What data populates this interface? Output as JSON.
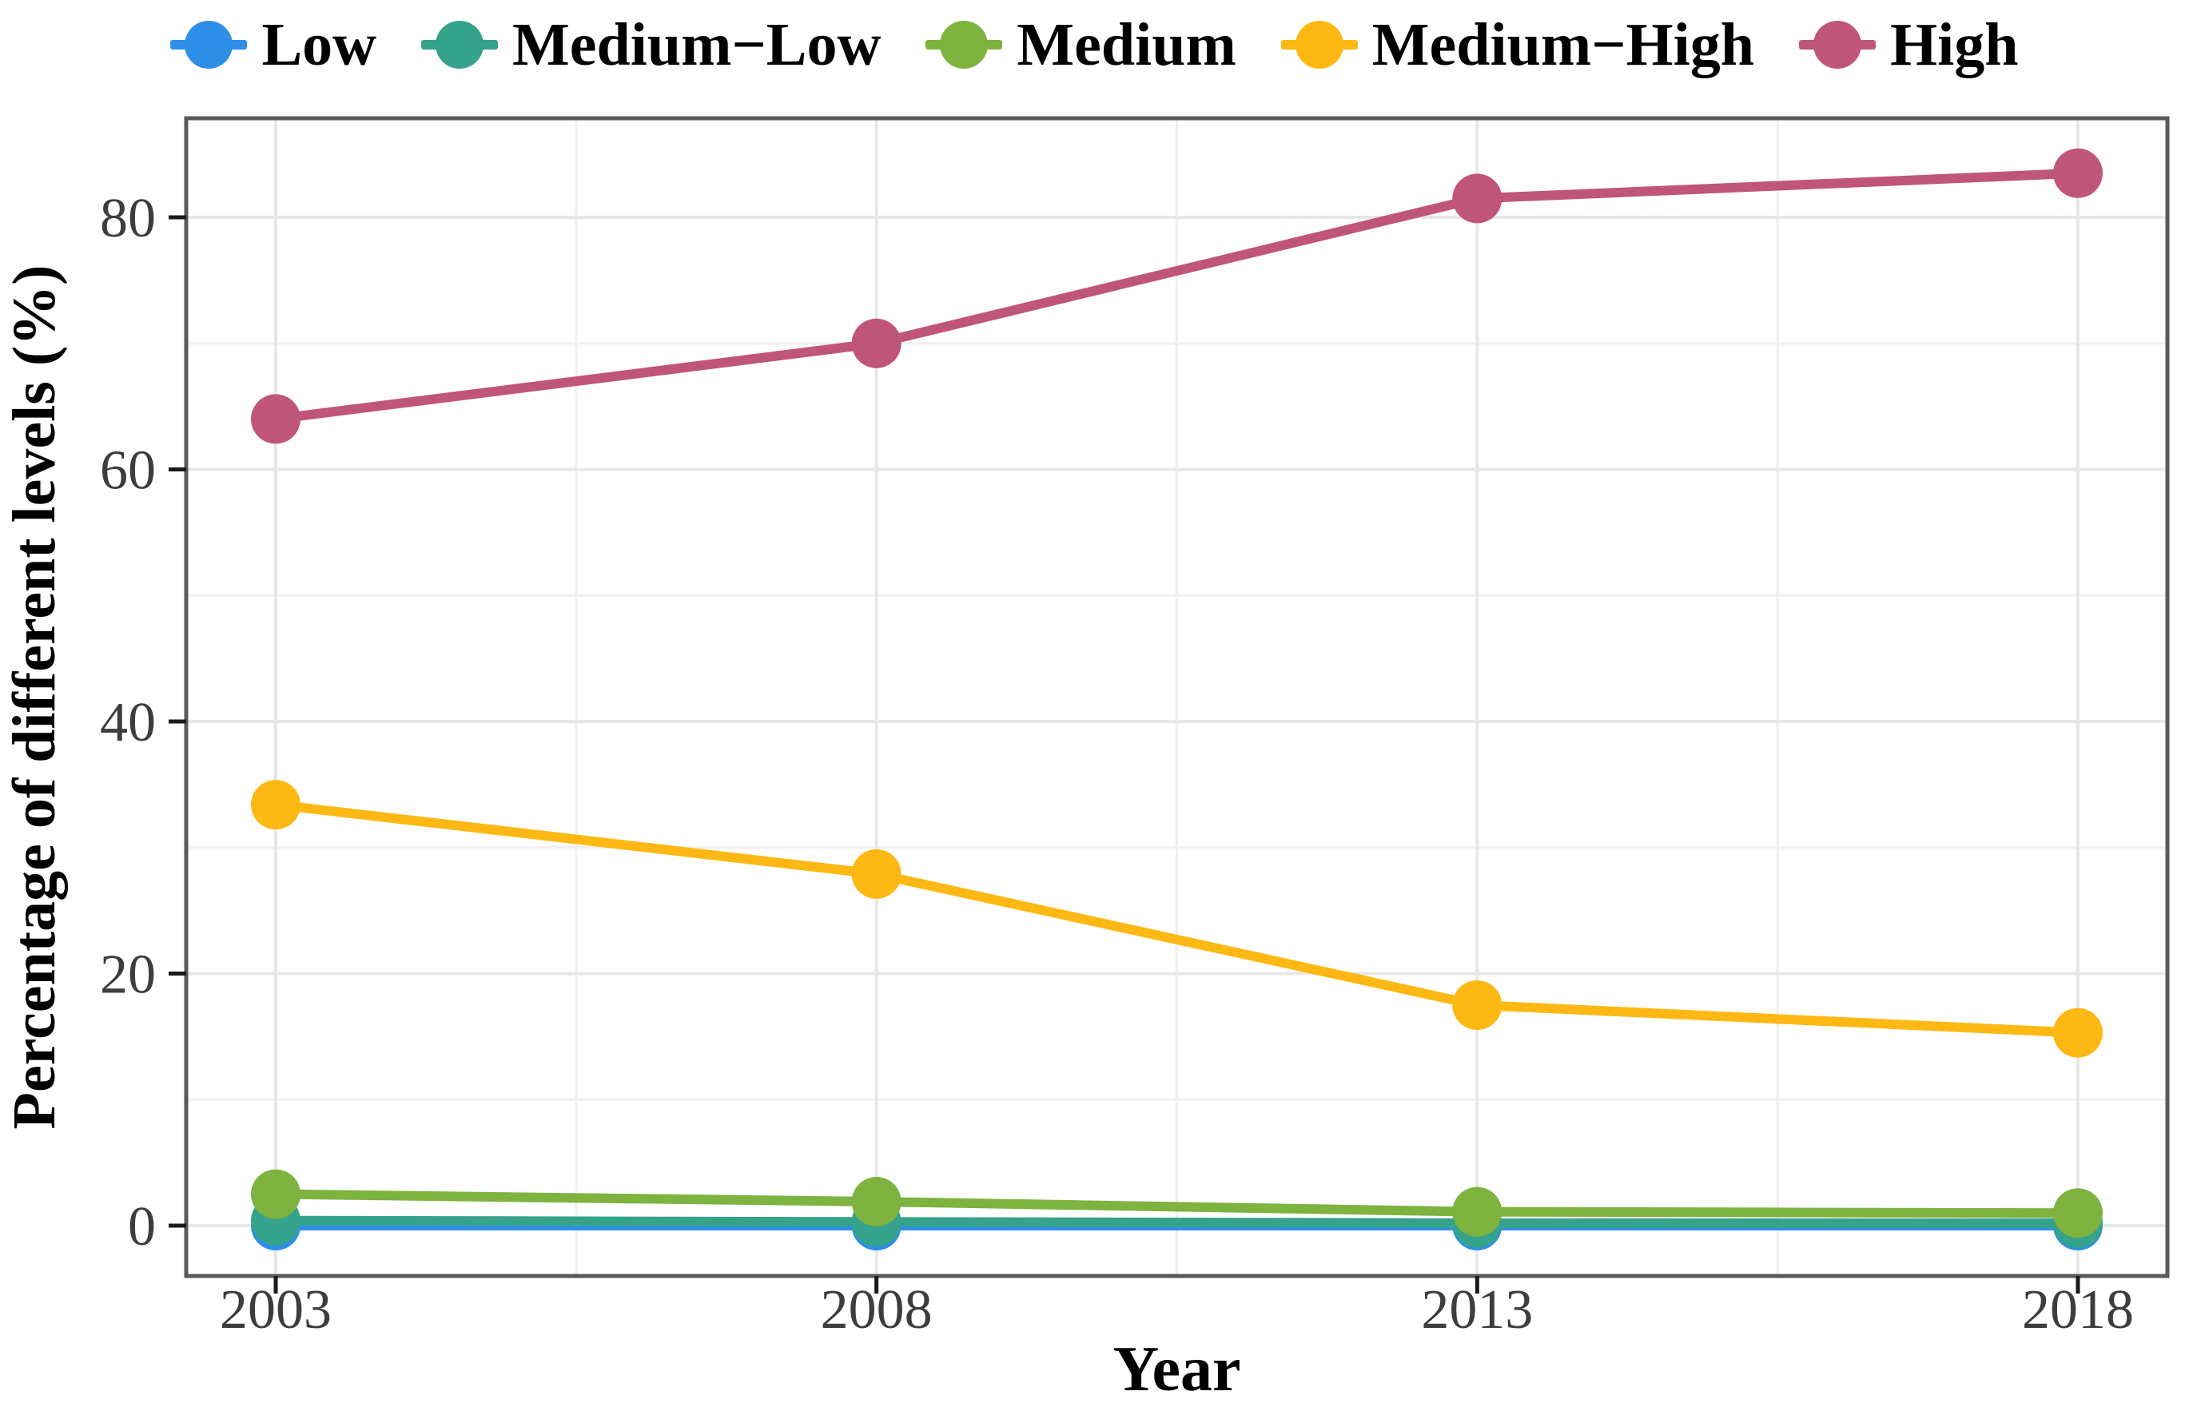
{
  "chart_data": {
    "type": "line",
    "xlabel": "Year",
    "ylabel": "Percentage of different levels (%)",
    "x": [
      2003,
      2008,
      2013,
      2018
    ],
    "ylim": [
      -4,
      88
    ],
    "yticks": [
      0,
      20,
      40,
      60,
      80
    ],
    "yticks_minor": [
      10,
      30,
      50,
      70
    ],
    "grid": true,
    "legend_position": "top",
    "series": [
      {
        "name": "Low",
        "color": "#2E8FE8",
        "values": [
          0.0,
          0.0,
          0.0,
          0.0
        ]
      },
      {
        "name": "Medium−Low",
        "color": "#35A28C",
        "values": [
          0.4,
          0.3,
          0.2,
          0.2
        ]
      },
      {
        "name": "Medium",
        "color": "#7DB33E",
        "values": [
          2.5,
          1.9,
          1.1,
          1.0
        ]
      },
      {
        "name": "Medium−High",
        "color": "#FDB813",
        "values": [
          33.4,
          27.9,
          17.5,
          15.3
        ]
      },
      {
        "name": "High",
        "color": "#C0557A",
        "values": [
          64.0,
          70.0,
          81.5,
          83.5
        ]
      }
    ],
    "layout": {
      "background": "#FFFFFF",
      "panel_border_color": "#595959",
      "grid_major_color": "#E7E7E7",
      "grid_minor_color": "#F1F1F1",
      "tick_color": "#1A1A1A",
      "tick_label_color": "#3D3D3D",
      "axis_title_color": "#000000"
    }
  }
}
